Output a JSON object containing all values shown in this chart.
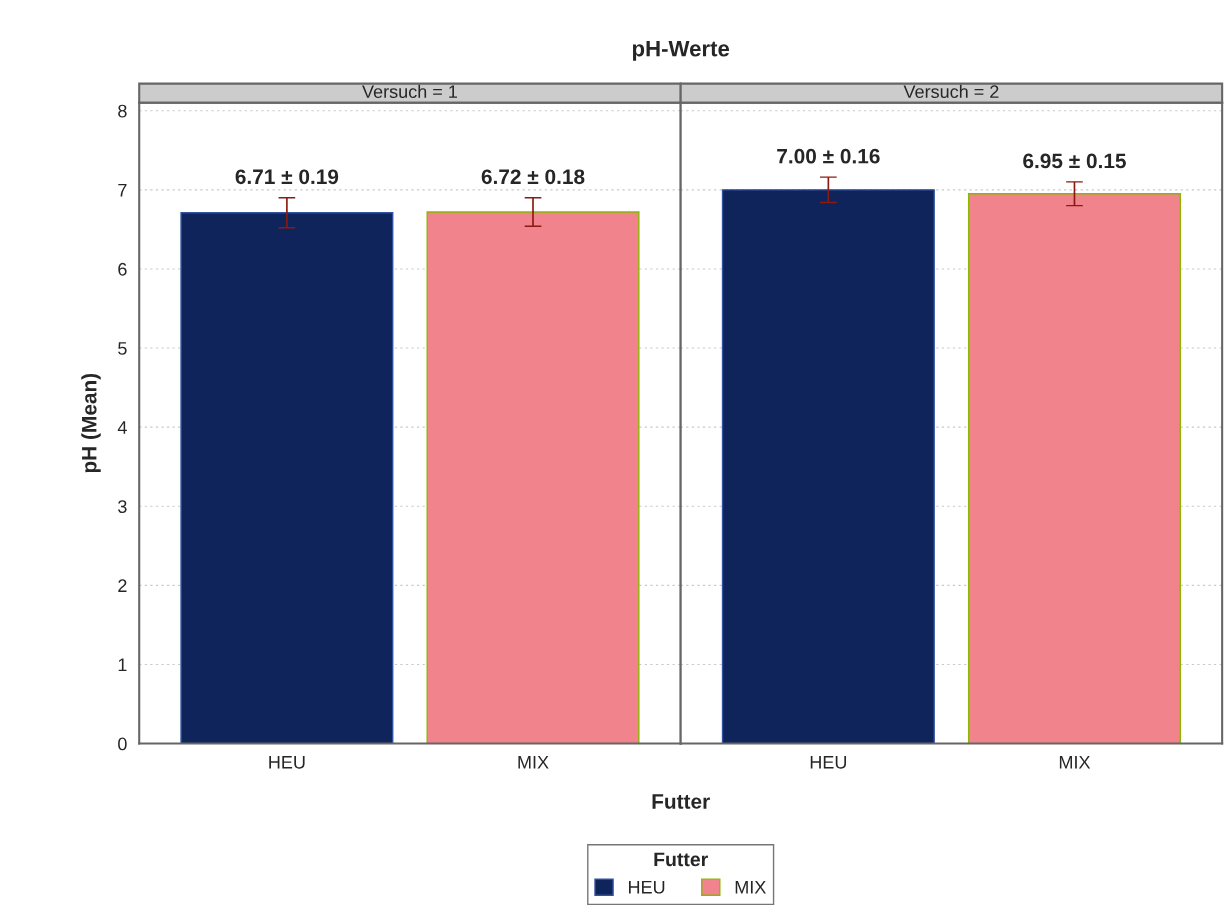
{
  "chart_data": [
    {
      "type": "bar",
      "title": "pH-Werte",
      "subtitle": "Versuch = 1",
      "ylabel": "pH (Mean)",
      "xlabel": "Futter",
      "legend_title": "Futter",
      "legend": "bottom",
      "categories": [
        "HEU",
        "MIX"
      ],
      "series": [
        {
          "name": "HEU",
          "color": "#10245c",
          "values": [
            6.71,
            null
          ],
          "errors": [
            0.19,
            null
          ],
          "value_labels": [
            "6.71 ± 0.19",
            null
          ]
        },
        {
          "name": "MIX",
          "color": "#f0838c",
          "values": [
            null,
            6.72
          ],
          "errors": [
            null,
            0.18
          ],
          "value_labels": [
            null,
            "6.72 ± 0.18"
          ]
        }
      ],
      "ylim": [
        0,
        8.1
      ],
      "yticks": [
        0,
        1,
        2,
        3,
        4,
        5,
        6,
        7,
        8
      ],
      "grid": "y"
    },
    {
      "type": "bar",
      "subtitle": "Versuch = 2",
      "categories": [
        "HEU",
        "MIX"
      ],
      "series": [
        {
          "color": "#10245c",
          "values": [
            7.0,
            null
          ],
          "errors": [
            0.16,
            null
          ],
          "value_labels": [
            "7.00 ± 0.16",
            null
          ]
        },
        {
          "color": "#f0838c",
          "values": [
            null,
            6.95
          ],
          "errors": [
            null,
            0.15
          ],
          "value_labels": [
            null,
            "6.95 ± 0.15"
          ]
        }
      ],
      "ylim": [
        0,
        8.1
      ],
      "yticks": [
        0,
        1,
        2,
        3,
        4,
        5,
        6,
        7,
        8
      ],
      "grid": "y",
      "tick_labels": "x"
    }
  ]
}
